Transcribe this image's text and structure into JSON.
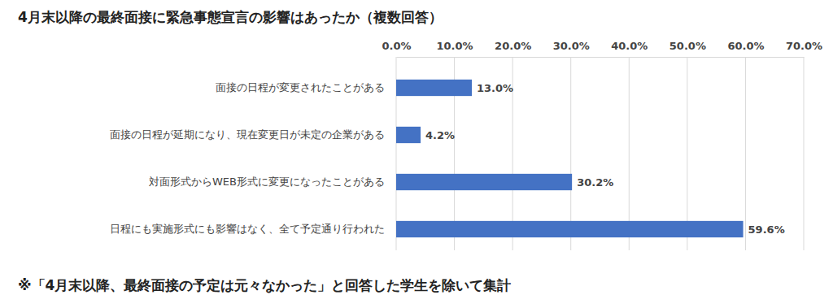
{
  "chart_data": {
    "type": "bar",
    "orientation": "horizontal",
    "title": "4月末以降の最終面接に緊急事態宣言の影響はあったか（複数回答）",
    "categories": [
      "面接の日程が変更されたことがある",
      "面接の日程が延期になり、現在変更日が未定の企業がある",
      "対面形式からWEB形式に変更になったことがある",
      "日程にも実施形式にも影響はなく、全て予定通り行われた"
    ],
    "values": [
      13.0,
      4.2,
      30.2,
      59.6
    ],
    "value_labels": [
      "13.0%",
      "4.2%",
      "30.2%",
      "59.6%"
    ],
    "color": "#4472c4",
    "data_labels": true,
    "grid": true,
    "xlim": [
      0,
      70
    ],
    "xticks": [
      {
        "value": 0,
        "label": "0.0%"
      },
      {
        "value": 10,
        "label": "10.0%"
      },
      {
        "value": 20,
        "label": "20.0%"
      },
      {
        "value": 30,
        "label": "30.0%"
      },
      {
        "value": 40,
        "label": "40.0%"
      },
      {
        "value": 50,
        "label": "50.0%"
      },
      {
        "value": 60,
        "label": "60.0%"
      },
      {
        "value": 70,
        "label": "70.0%"
      }
    ],
    "annotations": [
      "※「4月末以降、最終面接の予定は元々なかった」と回答した学生を除いて集計"
    ]
  }
}
